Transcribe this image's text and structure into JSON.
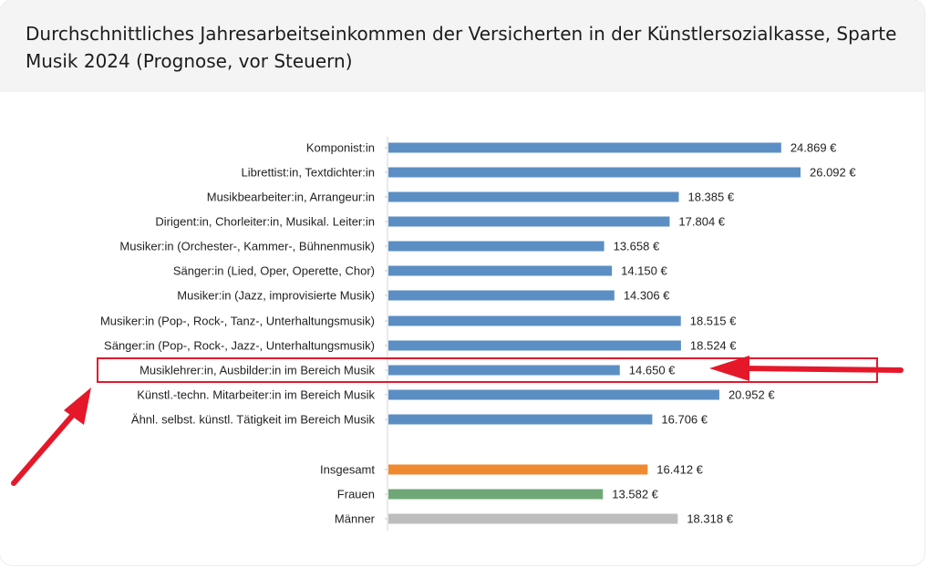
{
  "title": "Durchschnittliches Jahresarbeitseinkommen der Versicherten in der Künstlersozialkasse, Sparte Musik 2024 (Prognose, vor Steuern)",
  "colors": {
    "detail": "#5b8fc4",
    "insgesamt": "#ef8a31",
    "frauen": "#6fa876",
    "maenner": "#bdbdbd",
    "highlight": "#e5182a"
  },
  "chart_data": {
    "type": "bar",
    "orientation": "horizontal",
    "unit": "€",
    "xlim": [
      0,
      30000
    ],
    "grid": false,
    "legend": "none",
    "categories": [
      "Komponist:in",
      "Librettist:in, Textdichter:in",
      "Musikbearbeiter:in, Arrangeur:in",
      "Dirigent:in, Chorleiter:in, Musikal. Leiter:in",
      "Musiker:in (Orchester-, Kammer-, Bühnenmusik)",
      "Sänger:in (Lied, Oper, Operette, Chor)",
      "Musiker:in (Jazz, improvisierte Musik)",
      "Musiker:in (Pop-, Rock-, Tanz-, Unterhaltungsmusik)",
      "Sänger:in (Pop-, Rock-, Jazz-, Unterhaltungsmusik)",
      "Musiklehrer:in, Ausbilder:in im Bereich Musik",
      "Künstl.-techn. Mitarbeiter:in im Bereich Musik",
      "Ähnl. selbst. künstl. Tätigkeit im Bereich Musik",
      "Insgesamt",
      "Frauen",
      "Männer"
    ],
    "values": [
      24869,
      26092,
      18385,
      17804,
      13658,
      14150,
      14306,
      18515,
      18524,
      14650,
      20952,
      16706,
      16412,
      13582,
      18318
    ],
    "value_labels": [
      "24.869 €",
      "26.092 €",
      "18.385 €",
      "17.804 €",
      "13.658 €",
      "14.150 €",
      "14.306 €",
      "18.515 €",
      "18.524 €",
      "14.650 €",
      "20.952 €",
      "16.706 €",
      "16.412 €",
      "13.582 €",
      "18.318 €"
    ],
    "bar_colors": [
      "detail",
      "detail",
      "detail",
      "detail",
      "detail",
      "detail",
      "detail",
      "detail",
      "detail",
      "detail",
      "detail",
      "detail",
      "insgesamt",
      "frauen",
      "maenner"
    ],
    "highlighted_category": "Musiklehrer:in, Ausbilder:in im Bereich Musik"
  }
}
